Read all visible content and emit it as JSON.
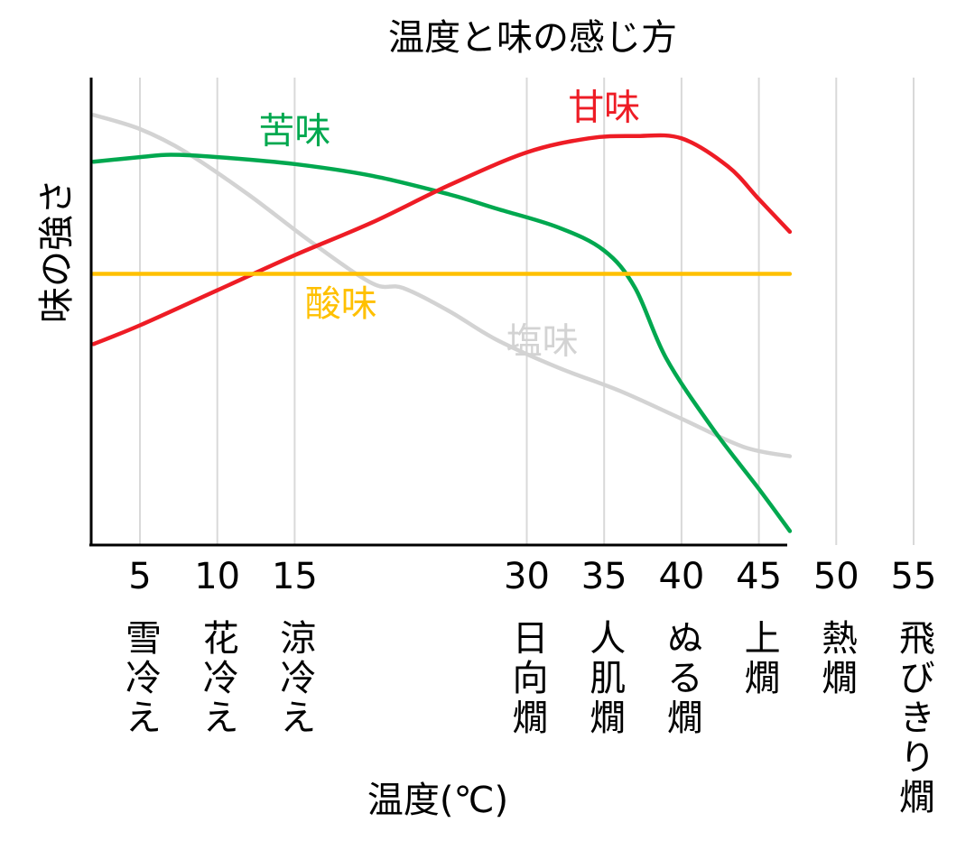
{
  "chart_data": {
    "type": "line",
    "title": "温度と味の感じ方",
    "xlabel": "温度(℃)",
    "ylabel": "味の強さ",
    "x_ticks": [
      {
        "value": 5,
        "label": "5",
        "name": "雪冷え"
      },
      {
        "value": 10,
        "label": "10",
        "name": "花冷え"
      },
      {
        "value": 15,
        "label": "15",
        "name": "涼冷え"
      },
      {
        "value": 30,
        "label": "30",
        "name": "日向燗"
      },
      {
        "value": 35,
        "label": "35",
        "name": "人肌燗"
      },
      {
        "value": 40,
        "label": "40",
        "name": "ぬる燗"
      },
      {
        "value": 45,
        "label": "45",
        "name": "上燗"
      },
      {
        "value": 50,
        "label": "50",
        "name": "熱燗"
      },
      {
        "value": 55,
        "label": "55",
        "name": "飛びきり燗"
      }
    ],
    "xlim": [
      2,
      55
    ],
    "ylim": [
      0,
      100
    ],
    "grid": true,
    "series": [
      {
        "name": "塩味",
        "color": "#d3d3d3",
        "points": [
          [
            2,
            92
          ],
          [
            5,
            89
          ],
          [
            8,
            84
          ],
          [
            12,
            75
          ],
          [
            16,
            65
          ],
          [
            20,
            56
          ],
          [
            22,
            55
          ],
          [
            25,
            50
          ],
          [
            28,
            44
          ],
          [
            32,
            38
          ],
          [
            36,
            33
          ],
          [
            40,
            27
          ],
          [
            44,
            21
          ],
          [
            47,
            19
          ]
        ]
      },
      {
        "name": "苦味",
        "color": "#00a84f",
        "points": [
          [
            2,
            82
          ],
          [
            5,
            83
          ],
          [
            7,
            83.5
          ],
          [
            10,
            83
          ],
          [
            15,
            81.5
          ],
          [
            20,
            79
          ],
          [
            25,
            75
          ],
          [
            28,
            72
          ],
          [
            32,
            68
          ],
          [
            35,
            63
          ],
          [
            37,
            55
          ],
          [
            39,
            40
          ],
          [
            42,
            25
          ],
          [
            45,
            12
          ],
          [
            47,
            3
          ]
        ]
      },
      {
        "name": "甘味",
        "color": "#ee1c25",
        "points": [
          [
            2,
            43
          ],
          [
            5,
            47
          ],
          [
            10,
            54.5
          ],
          [
            15,
            62
          ],
          [
            20,
            69
          ],
          [
            25,
            77
          ],
          [
            30,
            84
          ],
          [
            34,
            87
          ],
          [
            37,
            87.5
          ],
          [
            40,
            87
          ],
          [
            43,
            81
          ],
          [
            45,
            74
          ],
          [
            47,
            67
          ]
        ]
      },
      {
        "name": "酸味",
        "color": "#ffc000",
        "points": [
          [
            2,
            58
          ],
          [
            47,
            58
          ]
        ]
      }
    ]
  }
}
